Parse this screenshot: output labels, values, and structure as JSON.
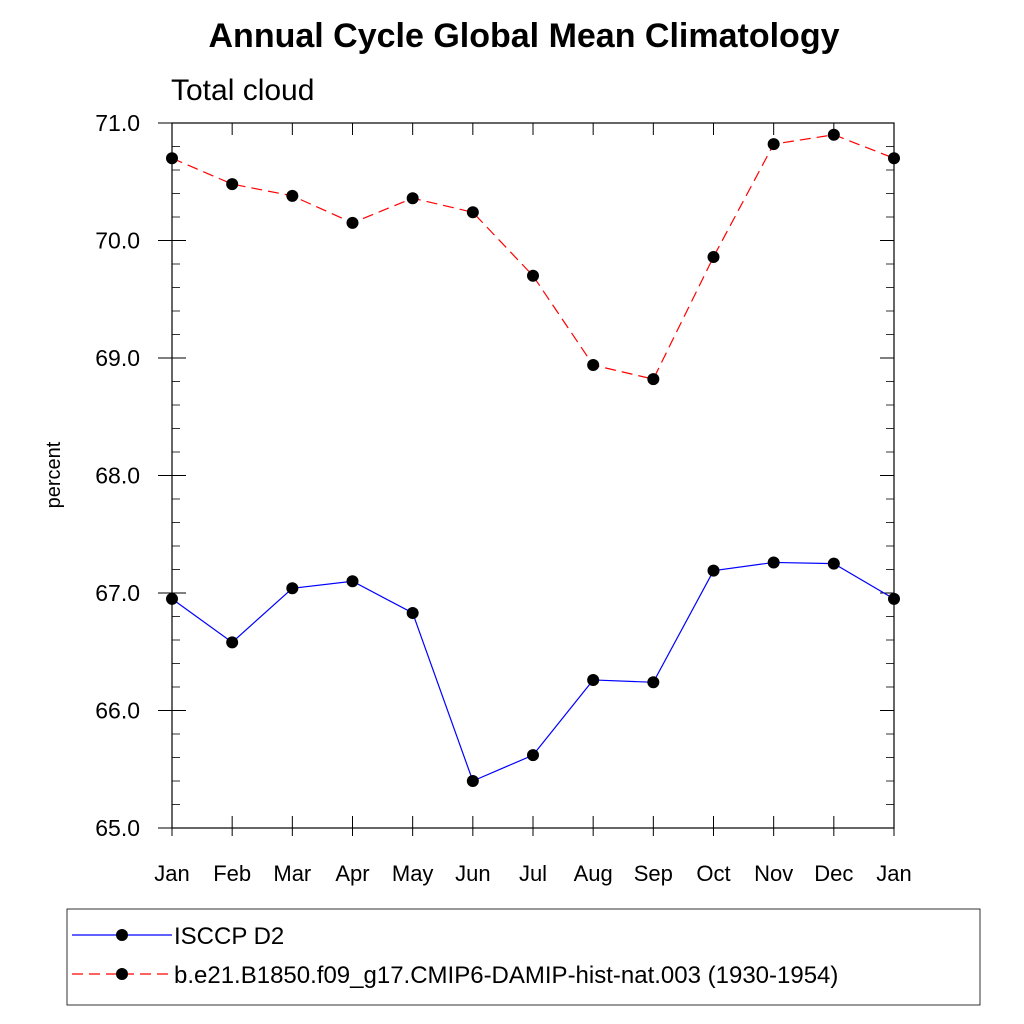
{
  "chart_data": {
    "type": "line",
    "title": "Annual Cycle Global Mean Climatology",
    "subtitle": "Total cloud",
    "ylabel": "percent",
    "xlabel": "",
    "categories": [
      "Jan",
      "Feb",
      "Mar",
      "Apr",
      "May",
      "Jun",
      "Jul",
      "Aug",
      "Sep",
      "Oct",
      "Nov",
      "Dec",
      "Jan"
    ],
    "ylim": [
      65.0,
      71.0
    ],
    "yticks": [
      "65.0",
      "66.0",
      "67.0",
      "68.0",
      "69.0",
      "70.0",
      "71.0"
    ],
    "y_minor_step": 0.2,
    "grid": false,
    "legend": "bottom",
    "series": [
      {
        "name": "ISCCP D2",
        "color": "#0000ff",
        "dash": "solid",
        "marker": "filled-circle",
        "values": [
          66.95,
          66.58,
          67.04,
          67.1,
          66.83,
          65.4,
          65.62,
          66.26,
          66.24,
          67.19,
          67.26,
          67.25,
          66.95
        ]
      },
      {
        "name": "b.e21.B1850.f09_g17.CMIP6-DAMIP-hist-nat.003 (1930-1954)",
        "color": "#ff0000",
        "dash": "dashed",
        "marker": "filled-circle",
        "values": [
          70.7,
          70.48,
          70.38,
          70.15,
          70.36,
          70.24,
          69.7,
          68.94,
          68.82,
          69.86,
          70.82,
          70.9,
          70.7
        ]
      }
    ]
  }
}
